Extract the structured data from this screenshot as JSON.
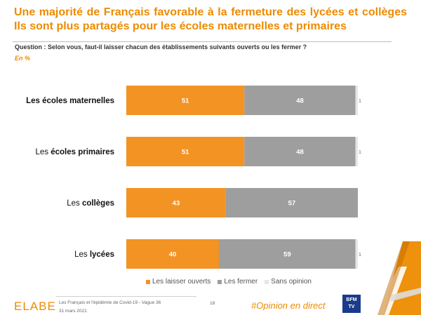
{
  "title": {
    "line1": "Une majorité de Français favorable à la fermeture des lycées et collèges",
    "line2": "Ils sont plus partagés pour les écoles maternelles et primaires"
  },
  "question": "Question : Selon vous, faut-il laisser chacun des établissements suivants ouverts ou les fermer ?",
  "unit": "En %",
  "chart_data": {
    "type": "bar",
    "orientation": "horizontal",
    "stacked": true,
    "categories": [
      {
        "prefix": "Les ",
        "bold": "écoles maternelles",
        "all_bold": true
      },
      {
        "prefix": "Les ",
        "bold": "écoles primaires",
        "all_bold": false
      },
      {
        "prefix": "Les ",
        "bold": "collèges",
        "all_bold": false
      },
      {
        "prefix": "Les ",
        "bold": "lycées",
        "all_bold": false
      }
    ],
    "series": [
      {
        "name": "Les laisser ouverts",
        "color": "#F39323",
        "values": [
          51,
          51,
          43,
          40
        ]
      },
      {
        "name": "Les fermer",
        "color": "#9E9E9E",
        "values": [
          48,
          48,
          57,
          59
        ]
      },
      {
        "name": "Sans opinion",
        "color": "#E6E6E6",
        "values": [
          1,
          1,
          0,
          1
        ]
      }
    ],
    "xlim": [
      0,
      100
    ]
  },
  "footer": {
    "logo": "ELABE",
    "study": "Les Français et l'épidémie de Covid-19 - Vague 36",
    "date": "31 mars 2021",
    "page": "18",
    "hashtag": "#Opinion en direct",
    "bfm_line1": "BFM",
    "bfm_line2": "TV"
  }
}
